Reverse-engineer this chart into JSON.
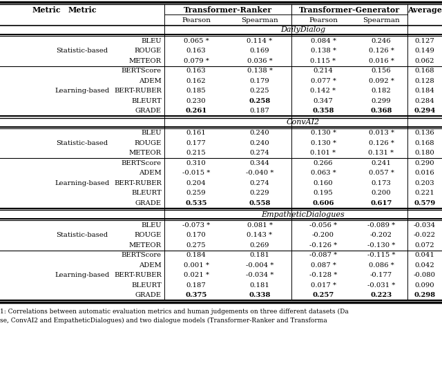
{
  "datasets": [
    "DailyDialog",
    "ConvAI2",
    "EmpatheticDialogues"
  ],
  "data": {
    "DailyDialog": {
      "Statistic-based": {
        "BLEU": [
          "0.065 *",
          "0.114 *",
          "0.084 *",
          "0.246",
          "0.127"
        ],
        "ROUGE": [
          "0.163",
          "0.169",
          "0.138 *",
          "0.126 *",
          "0.149"
        ],
        "METEOR": [
          "0.079 *",
          "0.036 *",
          "0.115 *",
          "0.016 *",
          "0.062"
        ]
      },
      "Learning-based": {
        "BERTScore": [
          "0.163",
          "0.138 *",
          "0.214",
          "0.156",
          "0.168"
        ],
        "ADEM": [
          "0.162",
          "0.179",
          "0.077 *",
          "0.092 *",
          "0.128"
        ],
        "BERT-RUBER": [
          "0.185",
          "0.225",
          "0.142 *",
          "0.182",
          "0.184"
        ],
        "BLEURT": [
          "0.230",
          "0.258",
          "0.347",
          "0.299",
          "0.284"
        ],
        "GRADE": [
          "0.261",
          "0.187",
          "0.358",
          "0.368",
          "0.294"
        ]
      }
    },
    "ConvAI2": {
      "Statistic-based": {
        "BLEU": [
          "0.161",
          "0.240",
          "0.130 *",
          "0.013 *",
          "0.136"
        ],
        "ROUGE": [
          "0.177",
          "0.240",
          "0.130 *",
          "0.126 *",
          "0.168"
        ],
        "METEOR": [
          "0.215",
          "0.274",
          "0.101 *",
          "0.131 *",
          "0.180"
        ]
      },
      "Learning-based": {
        "BERTScore": [
          "0.310",
          "0.344",
          "0.266",
          "0.241",
          "0.290"
        ],
        "ADEM": [
          "-0.015 *",
          "-0.040 *",
          "0.063 *",
          "0.057 *",
          "0.016"
        ],
        "BERT-RUBER": [
          "0.204",
          "0.274",
          "0.160",
          "0.173",
          "0.203"
        ],
        "BLEURT": [
          "0.259",
          "0.229",
          "0.195",
          "0.200",
          "0.221"
        ],
        "GRADE": [
          "0.535",
          "0.558",
          "0.606",
          "0.617",
          "0.579"
        ]
      }
    },
    "EmpatheticDialogues": {
      "Statistic-based": {
        "BLEU": [
          "-0.073 *",
          "0.081 *",
          "-0.056 *",
          "-0.089 *",
          "-0.034"
        ],
        "ROUGE": [
          "0.170",
          "0.143 *",
          "-0.200",
          "-0.202",
          "-0.022"
        ],
        "METEOR": [
          "0.275",
          "0.269",
          "-0.126 *",
          "-0.130 *",
          "0.072"
        ]
      },
      "Learning-based": {
        "BERTScore": [
          "0.184",
          "0.181",
          "-0.087 *",
          "-0.115 *",
          "0.041"
        ],
        "ADEM": [
          "0.001 *",
          "-0.004 *",
          "0.087 *",
          "0.086 *",
          "0.042"
        ],
        "BERT-RUBER": [
          "0.021 *",
          "-0.034 *",
          "-0.128 *",
          "-0.177",
          "-0.080"
        ],
        "BLEURT": [
          "0.187",
          "0.181",
          "0.017 *",
          "-0.031 *",
          "0.090"
        ],
        "GRADE": [
          "0.375",
          "0.338",
          "0.257",
          "0.223",
          "0.298"
        ]
      }
    }
  },
  "bold_cells": {
    "DailyDialog": {
      "Learning-based": {
        "BLEURT": [
          false,
          true,
          false,
          false,
          false
        ],
        "GRADE": [
          true,
          false,
          true,
          true,
          true
        ]
      }
    },
    "ConvAI2": {
      "Learning-based": {
        "GRADE": [
          true,
          true,
          true,
          true,
          true
        ]
      }
    },
    "EmpatheticDialogues": {
      "Learning-based": {
        "GRADE": [
          true,
          true,
          true,
          true,
          true
        ]
      }
    }
  },
  "caption1": "1: Correlations between automatic evaluation metrics and human judgements on three different datasets (Da",
  "caption2": "se, ConvAI2 and EmpatheticDialogues) and two dialogue models (Transformer-Ranker and Transforma"
}
